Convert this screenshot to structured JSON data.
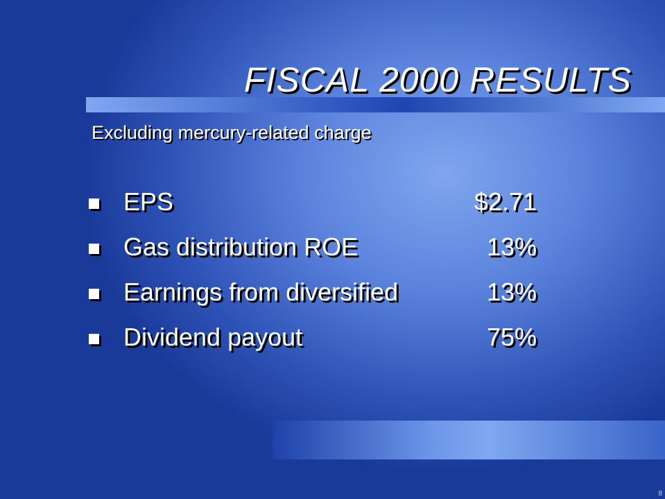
{
  "header": {
    "title": "FISCAL 2000 RESULTS",
    "subtitle": "Excluding mercury-related charge"
  },
  "items": [
    {
      "label": "EPS",
      "value": "$2.71"
    },
    {
      "label": "Gas distribution ROE",
      "value": "13%"
    },
    {
      "label": "Earnings from diversified",
      "value": "13%"
    },
    {
      "label": "Dividend payout",
      "value": "75%"
    }
  ],
  "footer": {
    "page": "8"
  }
}
